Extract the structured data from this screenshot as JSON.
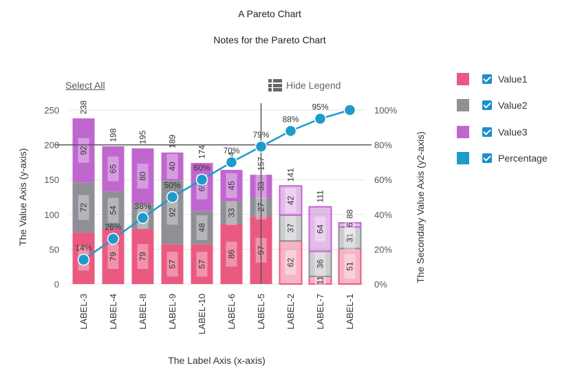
{
  "title": "A Pareto Chart",
  "subtitle": "Notes for the Pareto Chart",
  "controls": {
    "select_all": "Select All",
    "hide_legend": "Hide Legend"
  },
  "legend": [
    {
      "label": "Value1",
      "color": "#ea5a80",
      "checked": true
    },
    {
      "label": "Value2",
      "color": "#8f9096",
      "checked": true
    },
    {
      "label": "Value3",
      "color": "#c067cf",
      "checked": true
    },
    {
      "label": "Percentage",
      "color": "#1e9bcb",
      "checked": true
    }
  ],
  "chart_data": {
    "type": "bar",
    "stacked": true,
    "title": "A Pareto Chart",
    "subtitle": "Notes for the Pareto Chart",
    "xlabel": "The Label Axis (x-axis)",
    "ylabel": "The Value Axis (y-axis)",
    "y2label": "The Secondary Value Axis (y2-axis)",
    "ylim": [
      0,
      250
    ],
    "yticks": [
      0,
      50,
      100,
      150,
      200,
      250
    ],
    "y2lim": [
      0,
      100
    ],
    "y2ticks": [
      "0%",
      "20%",
      "40%",
      "60%",
      "80%",
      "100%"
    ],
    "categories": [
      "LABEL-3",
      "LABEL-4",
      "LABEL-8",
      "LABEL-9",
      "LABEL-10",
      "LABEL-6",
      "LABEL-5",
      "LABEL-2",
      "LABEL-7",
      "LABEL-1"
    ],
    "series": [
      {
        "name": "Value1",
        "color": "#ea5a80",
        "values": [
          74,
          79,
          79,
          57,
          57,
          86,
          97,
          62,
          11,
          51
        ]
      },
      {
        "name": "Value2",
        "color": "#8f9096",
        "values": [
          72,
          54,
          36,
          92,
          48,
          33,
          27,
          37,
          36,
          31
        ]
      },
      {
        "name": "Value3",
        "color": "#c067cf",
        "values": [
          92,
          65,
          80,
          40,
          69,
          45,
          33,
          42,
          64,
          6
        ]
      }
    ],
    "totals": [
      238,
      198,
      195,
      189,
      174,
      164,
      157,
      141,
      111,
      88
    ],
    "percentage": {
      "name": "Percentage",
      "color": "#1e9bcb",
      "values": [
        14,
        26,
        38,
        50,
        60,
        70,
        79,
        88,
        95,
        100
      ],
      "labels": [
        "14%",
        "26%",
        "38%",
        "50%",
        "60%",
        "70%",
        "79%",
        "88%",
        "95%",
        ""
      ]
    },
    "faded_from_index": 7,
    "crosshair": {
      "category": "LABEL-5",
      "y2_value": 80
    }
  }
}
